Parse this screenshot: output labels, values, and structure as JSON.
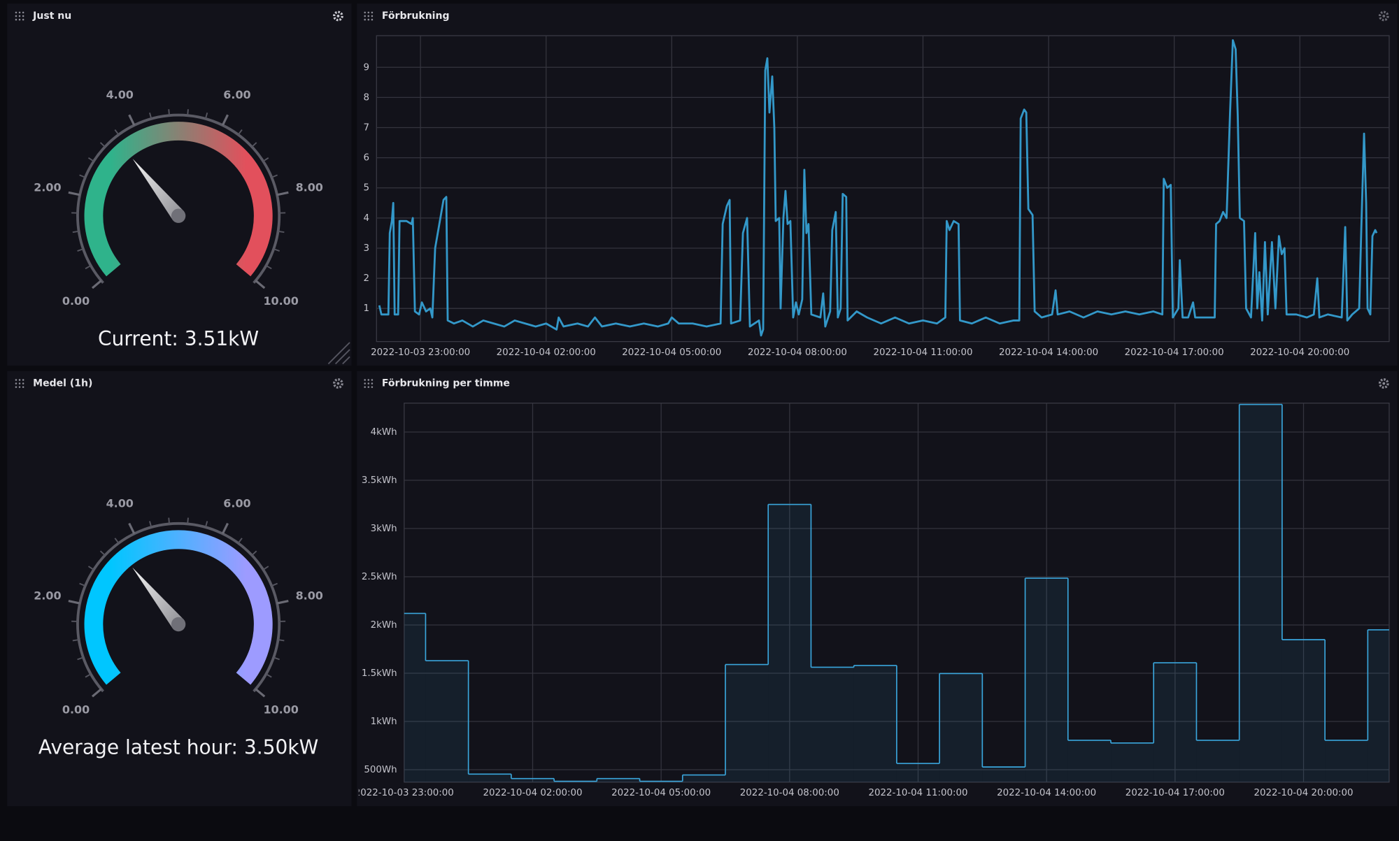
{
  "chart_data": [
    {
      "type": "gauge",
      "title": "Just nu",
      "values": [
        3.51
      ],
      "value_labels": [
        "Current: 3.51kW"
      ],
      "colors": [
        "#2fb38b",
        "#e2505c"
      ],
      "ylim": [
        0,
        10
      ],
      "yticks": [
        {
          "value": 0,
          "label": "0.00"
        },
        {
          "value": 2,
          "label": "2.00"
        },
        {
          "value": 4,
          "label": "4.00"
        },
        {
          "value": 6,
          "label": "6.00"
        },
        {
          "value": 8,
          "label": "8.00"
        },
        {
          "value": 10,
          "label": "10.00"
        }
      ]
    },
    {
      "type": "line",
      "title": "Förbrukning",
      "color": "#3398c9",
      "grid": true,
      "x": [
        "2022-10-03 22:01:00",
        "2022-10-03 22:04:00",
        "2022-10-03 22:14:00",
        "2022-10-03 22:16:00",
        "2022-10-03 22:19:00",
        "2022-10-03 22:21:00",
        "2022-10-03 22:23:00",
        "2022-10-03 22:28:00",
        "2022-10-03 22:30:00",
        "2022-10-03 22:40:00",
        "2022-10-03 22:47:00",
        "2022-10-03 22:49:00",
        "2022-10-03 22:52:00",
        "2022-10-03 22:58:00",
        "2022-10-03 23:02:00",
        "2022-10-03 23:08:00",
        "2022-10-03 23:14:00",
        "2022-10-03 23:17:00",
        "2022-10-03 23:21:00",
        "2022-10-03 23:27:00",
        "2022-10-03 23:33:00",
        "2022-10-03 23:37:00",
        "2022-10-03 23:39:00",
        "2022-10-03 23:48:00",
        "2022-10-04 00:00:00",
        "2022-10-04 00:15:00",
        "2022-10-04 00:30:00",
        "2022-10-04 00:45:00",
        "2022-10-04 01:00:00",
        "2022-10-04 01:15:00",
        "2022-10-04 01:30:00",
        "2022-10-04 01:45:00",
        "2022-10-04 02:00:00",
        "2022-10-04 02:15:00",
        "2022-10-04 02:18:00",
        "2022-10-04 02:25:00",
        "2022-10-04 02:45:00",
        "2022-10-04 03:00:00",
        "2022-10-04 03:10:00",
        "2022-10-04 03:20:00",
        "2022-10-04 03:40:00",
        "2022-10-04 04:00:00",
        "2022-10-04 04:20:00",
        "2022-10-04 04:40:00",
        "2022-10-04 04:55:00",
        "2022-10-04 05:00:00",
        "2022-10-04 05:10:00",
        "2022-10-04 05:30:00",
        "2022-10-04 05:50:00",
        "2022-10-04 06:10:00",
        "2022-10-04 06:13:00",
        "2022-10-04 06:19:00",
        "2022-10-04 06:23:00",
        "2022-10-04 06:25:00",
        "2022-10-04 06:38:00",
        "2022-10-04 06:42:00",
        "2022-10-04 06:48:00",
        "2022-10-04 06:52:00",
        "2022-10-04 07:05:00",
        "2022-10-04 07:08:00",
        "2022-10-04 07:11:00",
        "2022-10-04 07:14:00",
        "2022-10-04 07:17:00",
        "2022-10-04 07:20:00",
        "2022-10-04 07:24:00",
        "2022-10-04 07:27:00",
        "2022-10-04 07:29:00",
        "2022-10-04 07:34:00",
        "2022-10-04 07:36:00",
        "2022-10-04 07:40:00",
        "2022-10-04 07:43:00",
        "2022-10-04 07:46:00",
        "2022-10-04 07:50:00",
        "2022-10-04 07:54:00",
        "2022-10-04 07:58:00",
        "2022-10-04 08:02:00",
        "2022-10-04 08:07:00",
        "2022-10-04 08:10:00",
        "2022-10-04 08:13:00",
        "2022-10-04 08:16:00",
        "2022-10-04 08:20:00",
        "2022-10-04 08:33:00",
        "2022-10-04 08:37:00",
        "2022-10-04 08:40:00",
        "2022-10-04 08:47:00",
        "2022-10-04 08:50:00",
        "2022-10-04 08:55:00",
        "2022-10-04 08:58:00",
        "2022-10-04 09:02:00",
        "2022-10-04 09:05:00",
        "2022-10-04 09:10:00",
        "2022-10-04 09:12:00",
        "2022-10-04 09:25:00",
        "2022-10-04 09:40:00",
        "2022-10-04 10:00:00",
        "2022-10-04 10:20:00",
        "2022-10-04 10:40:00",
        "2022-10-04 11:00:00",
        "2022-10-04 11:20:00",
        "2022-10-04 11:32:00",
        "2022-10-04 11:34:00",
        "2022-10-04 11:38:00",
        "2022-10-04 11:44:00",
        "2022-10-04 11:51:00",
        "2022-10-04 11:53:00",
        "2022-10-04 12:10:00",
        "2022-10-04 12:30:00",
        "2022-10-04 12:50:00",
        "2022-10-04 13:10:00",
        "2022-10-04 13:18:00",
        "2022-10-04 13:20:00",
        "2022-10-04 13:25:00",
        "2022-10-04 13:28:00",
        "2022-10-04 13:31:00",
        "2022-10-04 13:37:00",
        "2022-10-04 13:40:00",
        "2022-10-04 13:50:00",
        "2022-10-04 14:05:00",
        "2022-10-04 14:10:00",
        "2022-10-04 14:13:00",
        "2022-10-04 14:30:00",
        "2022-10-04 14:50:00",
        "2022-10-04 15:10:00",
        "2022-10-04 15:30:00",
        "2022-10-04 15:50:00",
        "2022-10-04 16:10:00",
        "2022-10-04 16:30:00",
        "2022-10-04 16:43:00",
        "2022-10-04 16:45:00",
        "2022-10-04 16:50:00",
        "2022-10-04 16:55:00",
        "2022-10-04 16:58:00",
        "2022-10-04 17:06:00",
        "2022-10-04 17:08:00",
        "2022-10-04 17:12:00",
        "2022-10-04 17:20:00",
        "2022-10-04 17:27:00",
        "2022-10-04 17:30:00",
        "2022-10-04 17:58:00",
        "2022-10-04 18:00:00",
        "2022-10-04 18:05:00",
        "2022-10-04 18:10:00",
        "2022-10-04 18:15:00",
        "2022-10-04 18:20:00",
        "2022-10-04 18:24:00",
        "2022-10-04 18:28:00",
        "2022-10-04 18:31:00",
        "2022-10-04 18:34:00",
        "2022-10-04 18:40:00",
        "2022-10-04 18:43:00",
        "2022-10-04 18:50:00",
        "2022-10-04 18:56:00",
        "2022-10-04 18:59:00",
        "2022-10-04 19:02:00",
        "2022-10-04 19:06:00",
        "2022-10-04 19:10:00",
        "2022-10-04 19:14:00",
        "2022-10-04 19:20:00",
        "2022-10-04 19:25:00",
        "2022-10-04 19:30:00",
        "2022-10-04 19:34:00",
        "2022-10-04 19:38:00",
        "2022-10-04 19:41:00",
        "2022-10-04 19:55:00",
        "2022-10-04 20:10:00",
        "2022-10-04 20:20:00",
        "2022-10-04 20:25:00",
        "2022-10-04 20:28:00",
        "2022-10-04 20:40:00",
        "2022-10-04 21:00:00",
        "2022-10-04 21:05:00",
        "2022-10-04 21:08:00",
        "2022-10-04 21:15:00",
        "2022-10-04 21:25:00",
        "2022-10-04 21:28:00",
        "2022-10-04 21:32:00",
        "2022-10-04 21:35:00",
        "2022-10-04 21:37:00",
        "2022-10-04 21:41:00",
        "2022-10-04 21:44:00",
        "2022-10-04 21:48:00",
        "2022-10-04 21:50:00"
      ],
      "values": [
        1.1,
        0.8,
        0.8,
        3.5,
        3.9,
        4.5,
        0.8,
        0.8,
        3.9,
        3.9,
        3.8,
        4.0,
        0.9,
        0.8,
        1.2,
        0.9,
        1.0,
        0.7,
        3.0,
        3.8,
        4.6,
        4.7,
        0.6,
        0.5,
        0.6,
        0.4,
        0.6,
        0.5,
        0.4,
        0.6,
        0.5,
        0.4,
        0.5,
        0.3,
        0.7,
        0.4,
        0.5,
        0.4,
        0.7,
        0.4,
        0.5,
        0.4,
        0.5,
        0.4,
        0.5,
        0.7,
        0.5,
        0.5,
        0.4,
        0.5,
        3.8,
        4.4,
        4.6,
        0.5,
        0.6,
        3.5,
        4.0,
        0.4,
        0.6,
        0.1,
        0.3,
        8.9,
        9.3,
        7.5,
        8.7,
        7.0,
        3.9,
        4.0,
        1.0,
        4.0,
        4.9,
        3.8,
        3.9,
        0.7,
        1.2,
        0.8,
        1.3,
        5.6,
        3.5,
        3.8,
        0.8,
        0.7,
        1.5,
        0.4,
        0.9,
        3.6,
        4.2,
        0.7,
        1.0,
        4.8,
        4.7,
        0.6,
        0.9,
        0.7,
        0.5,
        0.7,
        0.5,
        0.6,
        0.5,
        0.7,
        3.9,
        3.6,
        3.9,
        3.8,
        0.6,
        0.5,
        0.7,
        0.5,
        0.6,
        0.6,
        7.3,
        7.6,
        7.5,
        4.3,
        4.1,
        0.9,
        0.7,
        0.8,
        1.6,
        0.8,
        0.9,
        0.7,
        0.9,
        0.8,
        0.9,
        0.8,
        0.9,
        0.8,
        5.3,
        5.0,
        5.1,
        0.7,
        1.0,
        2.6,
        0.7,
        0.7,
        1.2,
        0.7,
        0.7,
        3.8,
        3.9,
        4.2,
        4.0,
        7.5,
        9.9,
        9.6,
        7.4,
        4.0,
        3.9,
        1.0,
        0.7,
        3.5,
        1.0,
        2.2,
        0.6,
        3.2,
        0.8,
        3.2,
        1.0,
        3.4,
        2.8,
        3.0,
        0.8,
        0.8,
        0.7,
        0.8,
        2.0,
        0.7,
        0.8,
        0.7,
        3.7,
        0.6,
        0.8,
        1.0,
        3.6,
        6.8,
        4.5,
        1.0,
        0.8,
        3.4,
        3.6,
        3.5
      ],
      "xlim": [
        "2022-10-03 21:57:00",
        "2022-10-04 22:08:00"
      ],
      "xticks": [
        "2022-10-03 23:00:00",
        "2022-10-04 02:00:00",
        "2022-10-04 05:00:00",
        "2022-10-04 08:00:00",
        "2022-10-04 11:00:00",
        "2022-10-04 14:00:00",
        "2022-10-04 17:00:00",
        "2022-10-04 20:00:00"
      ],
      "ylim": [
        -0.1,
        10.05
      ],
      "yticks": [
        1,
        2,
        3,
        4,
        5,
        6,
        7,
        8,
        9
      ]
    },
    {
      "type": "gauge",
      "title": "Medel (1h)",
      "values": [
        3.5
      ],
      "value_labels": [
        "Average latest hour: 3.50kW"
      ],
      "colors": [
        "#00c6ff",
        "#9d9bff"
      ],
      "ylim": [
        0,
        10
      ],
      "yticks": [
        {
          "value": 0,
          "label": "0.00"
        },
        {
          "value": 2,
          "label": "2.00"
        },
        {
          "value": 4,
          "label": "4.00"
        },
        {
          "value": 6,
          "label": "6.00"
        },
        {
          "value": 8,
          "label": "8.00"
        },
        {
          "value": 10,
          "label": "10.00"
        }
      ]
    },
    {
      "type": "step",
      "title": "Förbrukning per timme",
      "color": "#3aa6dc",
      "grid": true,
      "x": [
        "2022-10-03 23:00:00",
        "2022-10-04 00:00:00",
        "2022-10-04 01:00:00",
        "2022-10-04 02:00:00",
        "2022-10-04 03:00:00",
        "2022-10-04 04:00:00",
        "2022-10-04 05:00:00",
        "2022-10-04 06:00:00",
        "2022-10-04 07:00:00",
        "2022-10-04 08:00:00",
        "2022-10-04 09:00:00",
        "2022-10-04 10:00:00",
        "2022-10-04 11:00:00",
        "2022-10-04 12:00:00",
        "2022-10-04 13:00:00",
        "2022-10-04 14:00:00",
        "2022-10-04 15:00:00",
        "2022-10-04 16:00:00",
        "2022-10-04 17:00:00",
        "2022-10-04 18:00:00",
        "2022-10-04 19:00:00",
        "2022-10-04 20:00:00",
        "2022-10-04 21:00:00",
        "2022-10-04 22:00:00"
      ],
      "values": [
        2120,
        1630,
        454,
        408,
        380,
        408,
        380,
        445,
        1590,
        3250,
        1562,
        1580,
        565,
        1497,
        528,
        2485,
        805,
        777,
        1608,
        805,
        4286,
        1848,
        805,
        1950
      ],
      "xlim": [
        "2022-10-03 23:00:00",
        "2022-10-04 22:00:00"
      ],
      "xticks": [
        "2022-10-03 23:00:00",
        "2022-10-04 02:00:00",
        "2022-10-04 05:00:00",
        "2022-10-04 08:00:00",
        "2022-10-04 11:00:00",
        "2022-10-04 14:00:00",
        "2022-10-04 17:00:00",
        "2022-10-04 20:00:00"
      ],
      "ylim": [
        371,
        4300
      ],
      "yticks": [
        {
          "value": 500,
          "label": "500Wh"
        },
        {
          "value": 1000,
          "label": "1kWh"
        },
        {
          "value": 1500,
          "label": "1.5kWh"
        },
        {
          "value": 2000,
          "label": "2kWh"
        },
        {
          "value": 2500,
          "label": "2.5kWh"
        },
        {
          "value": 3000,
          "label": "3kWh"
        },
        {
          "value": 3500,
          "label": "3.5kWh"
        },
        {
          "value": 4000,
          "label": "4kWh"
        }
      ]
    }
  ]
}
